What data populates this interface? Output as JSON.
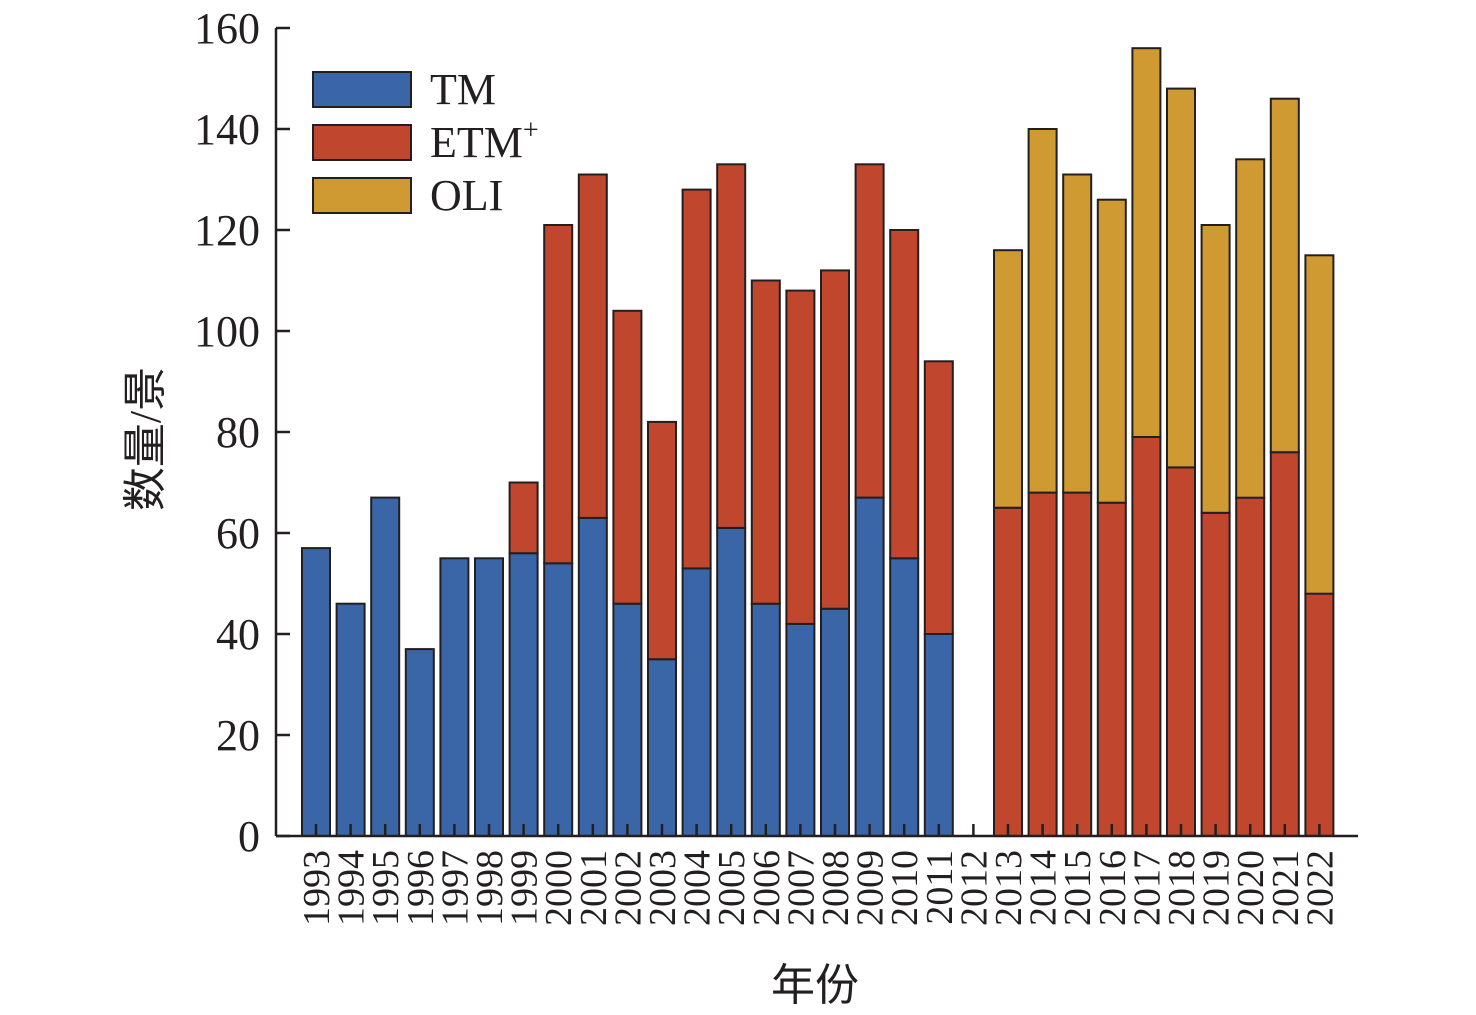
{
  "chart_data": {
    "type": "bar",
    "stacked": true,
    "title": "",
    "xlabel": "年份",
    "ylabel": "数量/景",
    "ylim": [
      0,
      160
    ],
    "yticks": [
      0,
      20,
      40,
      60,
      80,
      100,
      120,
      140,
      160
    ],
    "categories": [
      "1993",
      "1994",
      "1995",
      "1996",
      "1997",
      "1998",
      "1999",
      "2000",
      "2001",
      "2002",
      "2003",
      "2004",
      "2005",
      "2006",
      "2007",
      "2008",
      "2009",
      "2010",
      "2011",
      "2012",
      "2013",
      "2014",
      "2015",
      "2016",
      "2017",
      "2018",
      "2019",
      "2020",
      "2021",
      "2022"
    ],
    "legend_position": "top-left",
    "series": [
      {
        "name": "TM",
        "label_main": "TM",
        "label_sup": "",
        "color": "#3a66a8",
        "values": [
          57,
          46,
          67,
          37,
          55,
          55,
          56,
          54,
          63,
          46,
          35,
          53,
          61,
          46,
          42,
          45,
          67,
          55,
          40,
          0,
          0,
          0,
          0,
          0,
          0,
          0,
          0,
          0,
          0,
          0
        ]
      },
      {
        "name": "ETM+",
        "label_main": "ETM",
        "label_sup": "+",
        "color": "#c0462d",
        "values": [
          0,
          0,
          0,
          0,
          0,
          0,
          14,
          67,
          68,
          58,
          47,
          75,
          72,
          64,
          66,
          67,
          66,
          65,
          54,
          0,
          65,
          68,
          68,
          66,
          79,
          73,
          64,
          67,
          76,
          48
        ]
      },
      {
        "name": "OLI",
        "label_main": "OLI",
        "label_sup": "",
        "color": "#d09a32",
        "values": [
          0,
          0,
          0,
          0,
          0,
          0,
          0,
          0,
          0,
          0,
          0,
          0,
          0,
          0,
          0,
          0,
          0,
          0,
          0,
          0,
          51,
          72,
          63,
          60,
          77,
          75,
          57,
          67,
          70,
          67
        ]
      }
    ]
  }
}
